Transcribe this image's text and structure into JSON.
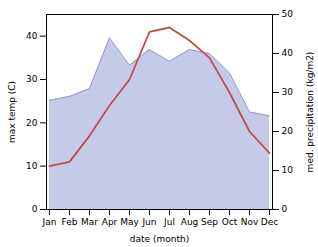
{
  "chart_data": {
    "type": "line",
    "categories": [
      "Jan",
      "Feb",
      "Mar",
      "Apr",
      "May",
      "Jun",
      "Jul",
      "Aug",
      "Sep",
      "Oct",
      "Nov",
      "Dec"
    ],
    "series": [
      {
        "type": "line",
        "color": "#c0504d",
        "values": [
          10,
          11,
          17,
          24,
          30,
          41,
          42,
          39,
          35,
          27,
          18,
          13
        ]
      },
      {
        "type": "area",
        "colors": [
          "#c5cae9",
          "#9999cc"
        ],
        "axis": "y2",
        "values": [
          28,
          29,
          31,
          44,
          37,
          41,
          38,
          41,
          40,
          35,
          25,
          24
        ]
      }
    ],
    "ylim": [
      0,
      45
    ],
    "yticks": [
      0,
      10,
      20,
      30,
      40
    ],
    "y2lim": [
      0,
      50
    ],
    "y2ticks": [
      0,
      10,
      20,
      30,
      40,
      50
    ],
    "xlabel": "date (month)",
    "ylabel": "max temp (C)",
    "y2label": "med. precipitation (kg/m2)"
  }
}
